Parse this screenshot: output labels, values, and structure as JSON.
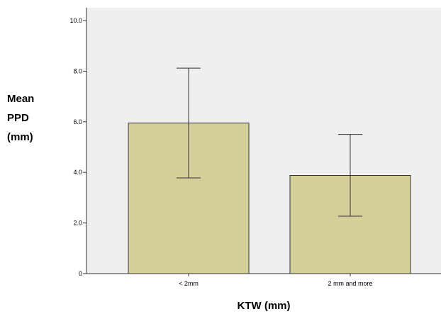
{
  "chart_data": {
    "type": "bar",
    "categories": [
      "< 2mm",
      "2 mm and more"
    ],
    "values": [
      5.95,
      3.88
    ],
    "error_bars": [
      {
        "low": 3.78,
        "high": 8.12
      },
      {
        "low": 2.27,
        "high": 5.5
      }
    ],
    "ylabel_lines": [
      "Mean",
      "PPD",
      "(mm)"
    ],
    "xlabel": "KTW (mm)",
    "ylim": [
      0,
      10
    ],
    "yticks": [
      0,
      2,
      4,
      6,
      8,
      10
    ],
    "ytick_labels": [
      "0",
      "2.0",
      "4.0",
      "6.0",
      "8.0",
      "10.0"
    ],
    "grid": false,
    "colors": {
      "plot_background": "#efefef",
      "bar_fill": "#d4cf98",
      "bar_stroke": "#333333",
      "axis": "#333333",
      "error_bar": "#333333"
    }
  }
}
